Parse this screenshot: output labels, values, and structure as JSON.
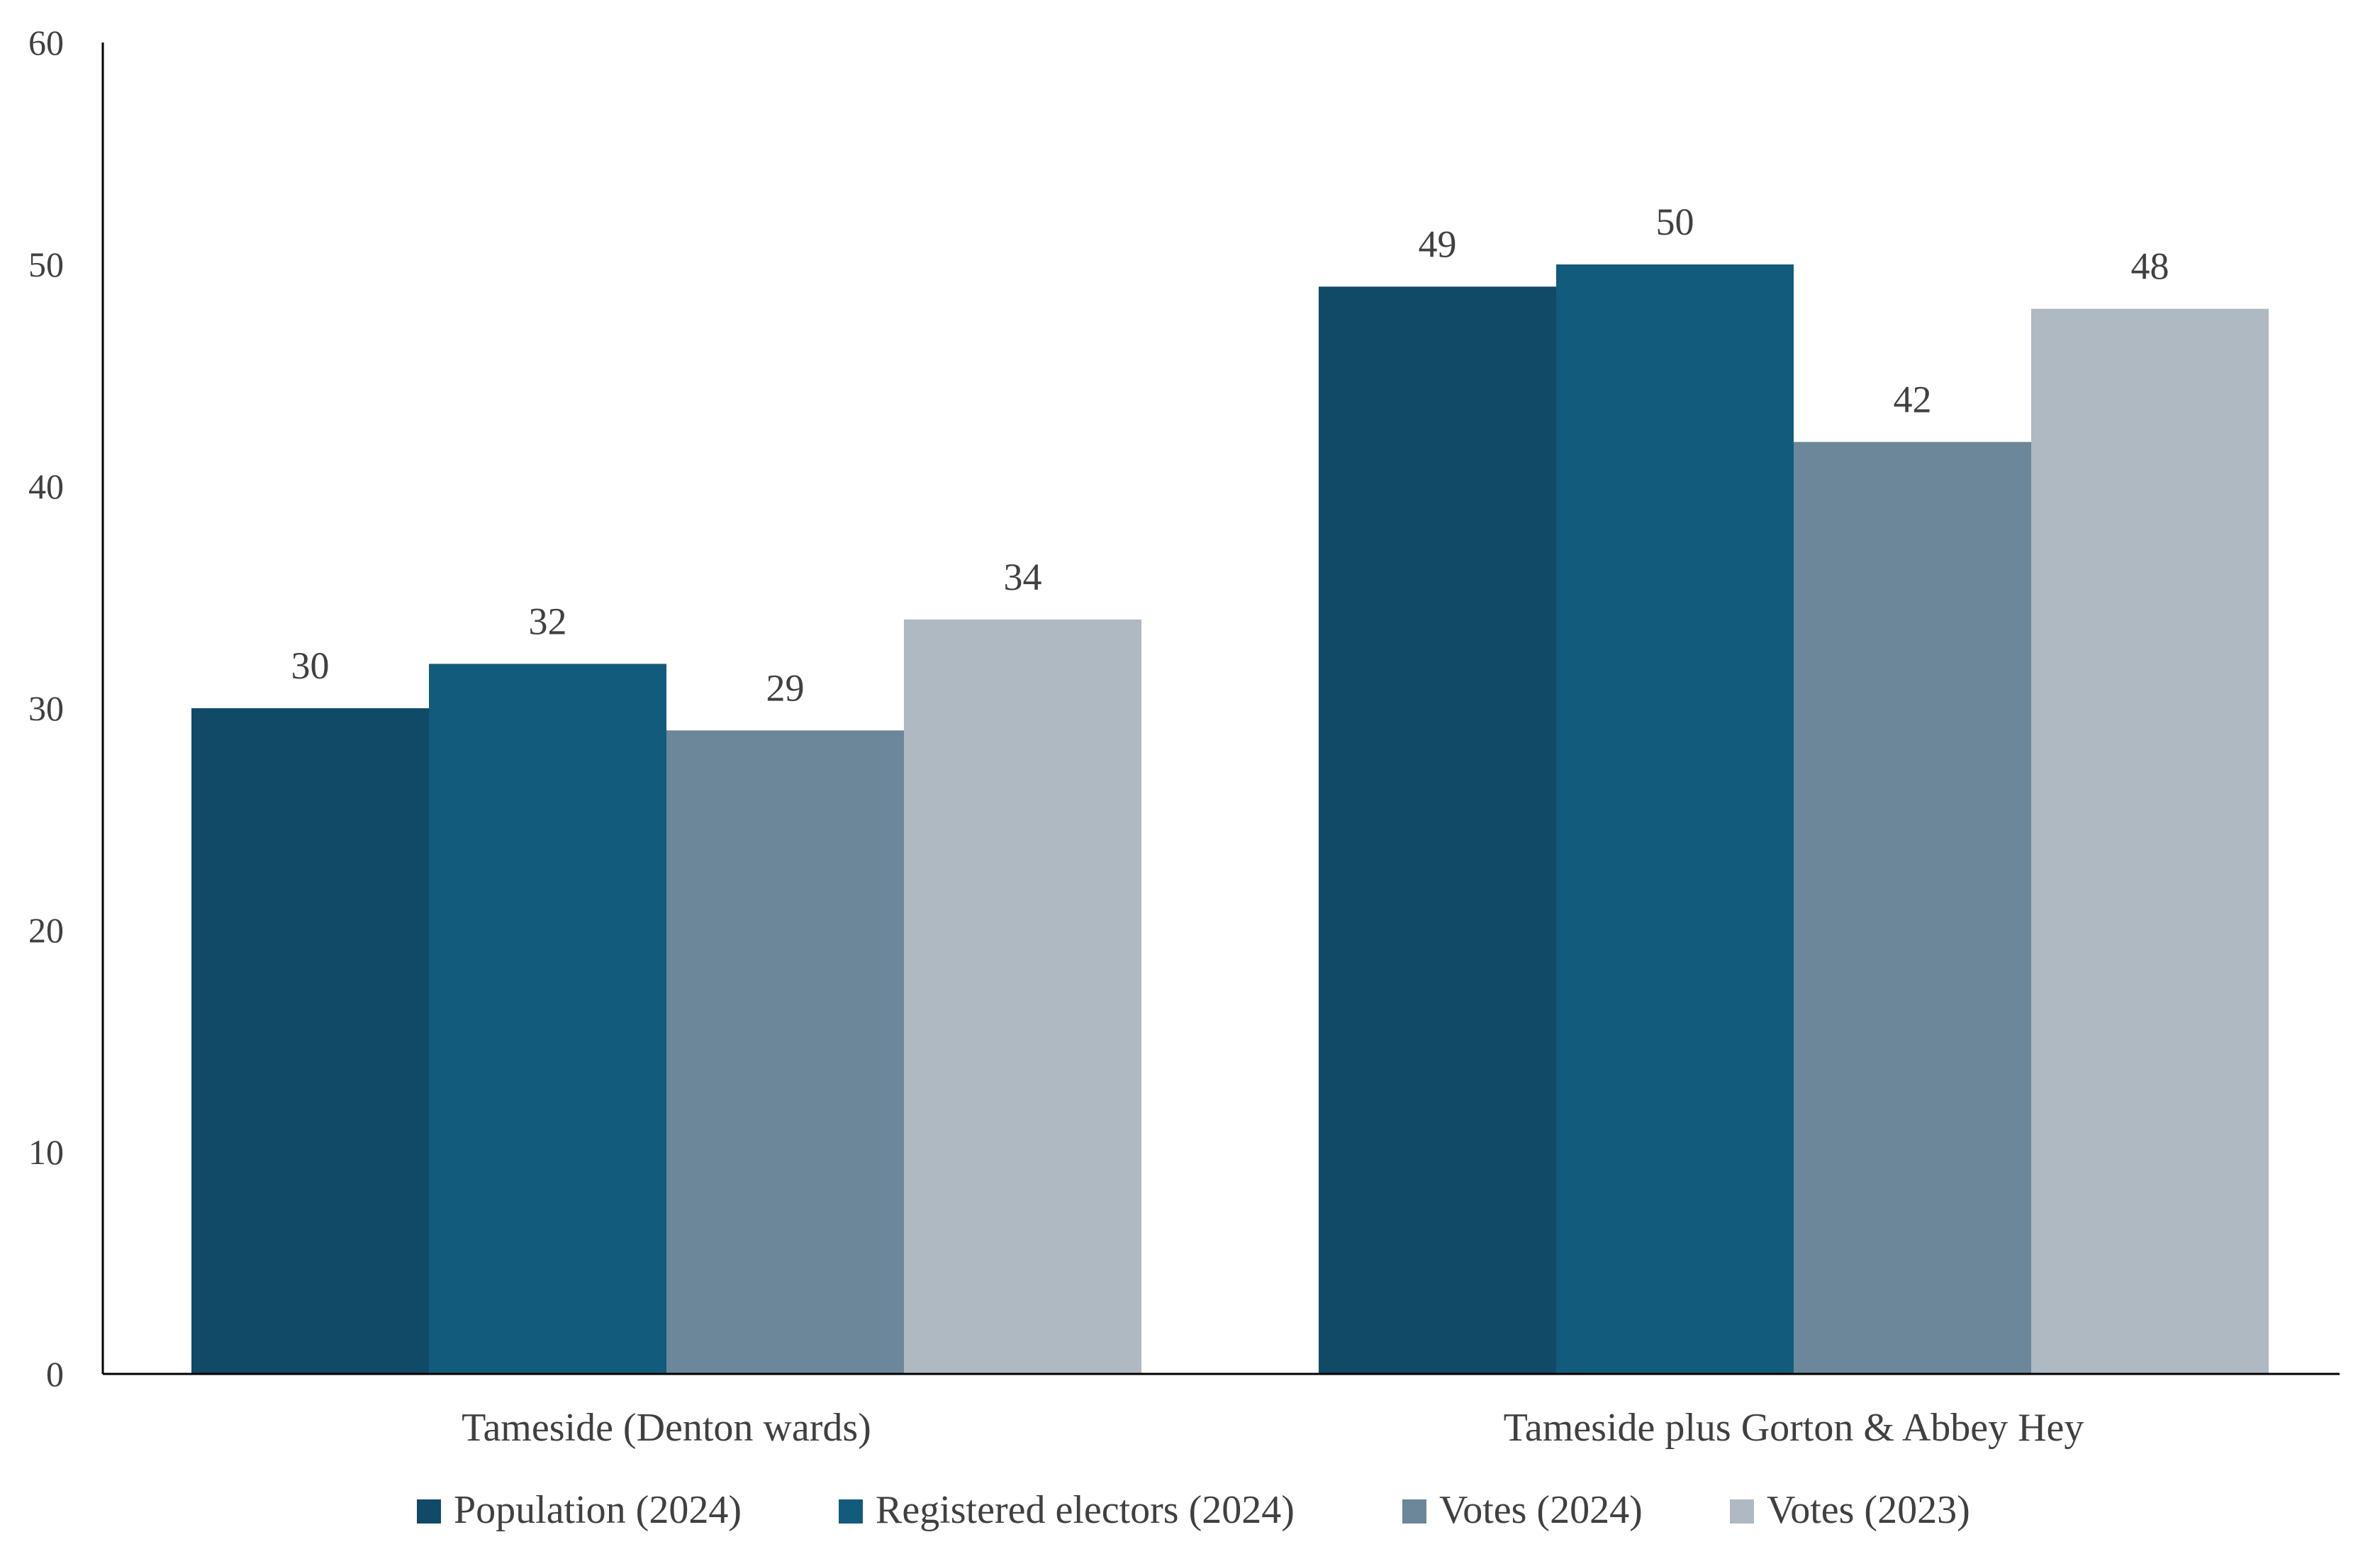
{
  "chart_data": {
    "type": "bar",
    "categories": [
      "Tameside (Denton wards)",
      "Tameside plus Gorton & Abbey Hey"
    ],
    "series": [
      {
        "name": "Population (2024)",
        "values": [
          30,
          49
        ],
        "color": "#104A66"
      },
      {
        "name": "Registered electors (2024)",
        "values": [
          32,
          50
        ],
        "color": "#135B7C"
      },
      {
        "name": "Votes (2024)",
        "values": [
          29,
          42
        ],
        "color": "#6B8799"
      },
      {
        "name": "Votes (2023)",
        "values": [
          34,
          48
        ],
        "color": "#AFB9C2"
      }
    ],
    "ylim": [
      0,
      60
    ],
    "yticks": [
      0,
      10,
      20,
      30,
      40,
      50,
      60
    ],
    "grid": false,
    "legend": "bottom",
    "data_labels": true
  }
}
